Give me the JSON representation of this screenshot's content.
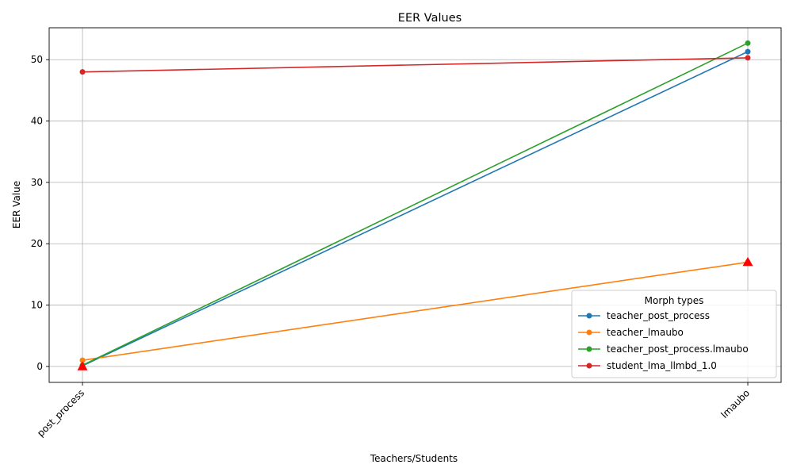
{
  "chart_data": {
    "type": "line",
    "title": "EER Values",
    "xlabel": "Teachers/Students",
    "ylabel": "EER Value",
    "categories": [
      "post_process",
      "lmaubo"
    ],
    "ylim": [
      -2.6,
      55.2
    ],
    "yticks": [
      "0",
      "10",
      "20",
      "30",
      "40",
      "50"
    ],
    "grid": true,
    "legend": {
      "title": "Morph types",
      "placement": "lower-right"
    },
    "series": [
      {
        "name": "teacher_post_process",
        "color": "#1f77b4",
        "values": [
          0.1,
          51.3
        ]
      },
      {
        "name": "teacher_lmaubo",
        "color": "#ff7f0e",
        "values": [
          1.0,
          17.0
        ]
      },
      {
        "name": "teacher_post_process.lmaubo",
        "color": "#2ca02c",
        "values": [
          0.2,
          52.7
        ]
      },
      {
        "name": "student_lma_llmbd_1.0",
        "color": "#d62728",
        "values": [
          48.0,
          50.3
        ]
      }
    ],
    "markers": [
      {
        "category": "post_process",
        "value": 0.0,
        "shape": "triangle",
        "color": "#ff0000"
      },
      {
        "category": "lmaubo",
        "value": 17.0,
        "shape": "triangle",
        "color": "#ff0000"
      }
    ]
  }
}
